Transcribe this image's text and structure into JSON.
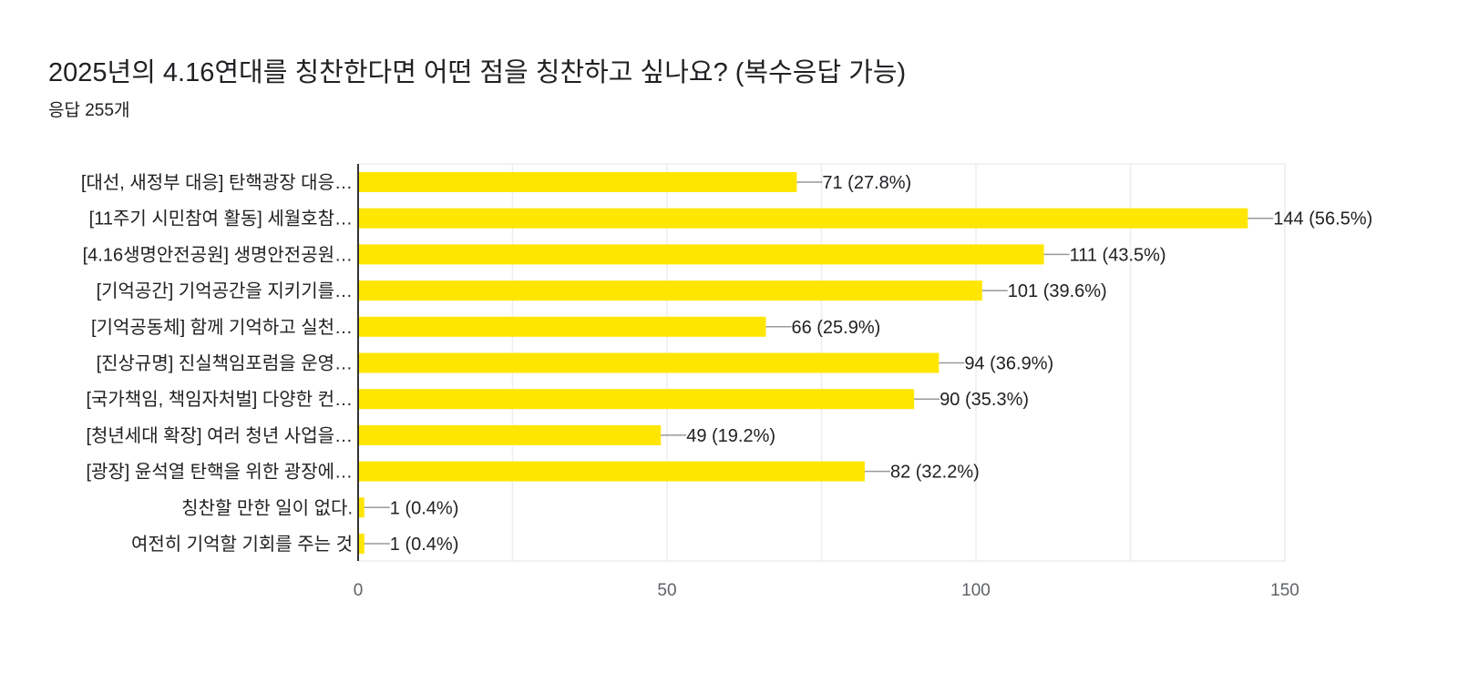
{
  "header": {
    "title": "2025년의 4.16연대를 칭찬한다면 어떤 점을 칭찬하고 싶나요? (복수응답 가능)",
    "response_count": "응답 255개"
  },
  "chart_data": {
    "type": "bar",
    "orientation": "horizontal",
    "categories": [
      "[대선, 새정부 대응] 탄핵광장 대응…",
      "[11주기 시민참여 활동] 세월호참…",
      "[4.16생명안전공원] 생명안전공원…",
      "[기억공간] 기억공간을 지키기를…",
      "[기억공동체] 함께 기억하고 실천…",
      "[진상규명] 진실책임포럼을 운영…",
      "[국가책임, 책임자처벌] 다양한 컨…",
      "[청년세대 확장] 여러 청년 사업을…",
      "[광장] 윤석열 탄핵을 위한 광장에…",
      "칭찬할 만한 일이 없다.",
      "여전히 기억할 기회를 주는 것"
    ],
    "values": [
      71,
      144,
      111,
      101,
      66,
      94,
      90,
      49,
      82,
      1,
      1
    ],
    "data_labels": [
      "71 (27.8%)",
      "144 (56.5%)",
      "111 (43.5%)",
      "101 (39.6%)",
      "66 (25.9%)",
      "94 (36.9%)",
      "90 (35.3%)",
      "49 (19.2%)",
      "82 (32.2%)",
      "1 (0.4%)",
      "1 (0.4%)"
    ],
    "xlim": [
      0,
      150
    ],
    "x_ticks": [
      "0",
      "50",
      "100",
      "150"
    ],
    "grid": true,
    "bar_color": "#ffe600"
  }
}
